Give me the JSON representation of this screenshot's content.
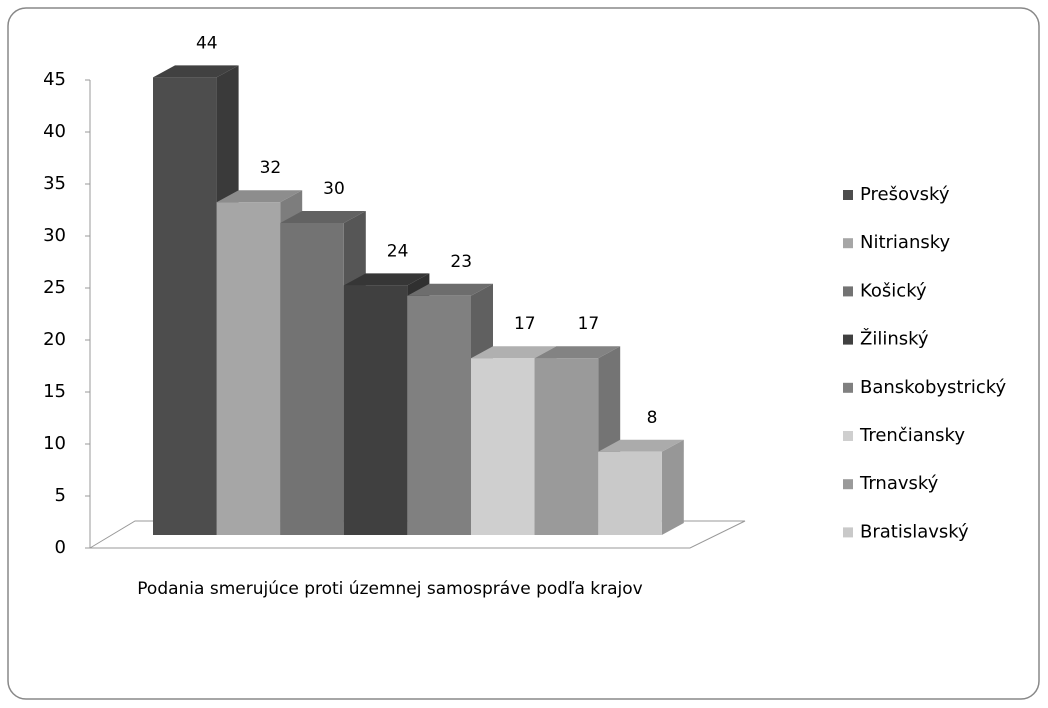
{
  "chart_data": {
    "type": "bar3d",
    "categories": [
      "Podania smerujúce proti územnej samospráve podľa krajov"
    ],
    "series": [
      {
        "name": "Prešovský",
        "color": "#4d4d4d",
        "values": [
          44
        ]
      },
      {
        "name": "Nitriansky",
        "color": "#a6a6a6",
        "values": [
          32
        ]
      },
      {
        "name": "Košický",
        "color": "#737373",
        "values": [
          30
        ]
      },
      {
        "name": "Žilinský",
        "color": "#404040",
        "values": [
          24
        ]
      },
      {
        "name": "Banskobystrický",
        "color": "#808080",
        "values": [
          23
        ]
      },
      {
        "name": "Trenčiansky",
        "color": "#cfcfcf",
        "values": [
          17
        ]
      },
      {
        "name": "Trnavský",
        "color": "#9a9a9a",
        "values": [
          17
        ]
      },
      {
        "name": "Bratislavský",
        "color": "#c9c9c9",
        "values": [
          8
        ]
      }
    ],
    "ylim": [
      0,
      45
    ],
    "yticks": [
      0,
      5,
      10,
      15,
      20,
      25,
      30,
      35,
      40,
      45
    ],
    "legend": "right",
    "data_labels": true
  }
}
